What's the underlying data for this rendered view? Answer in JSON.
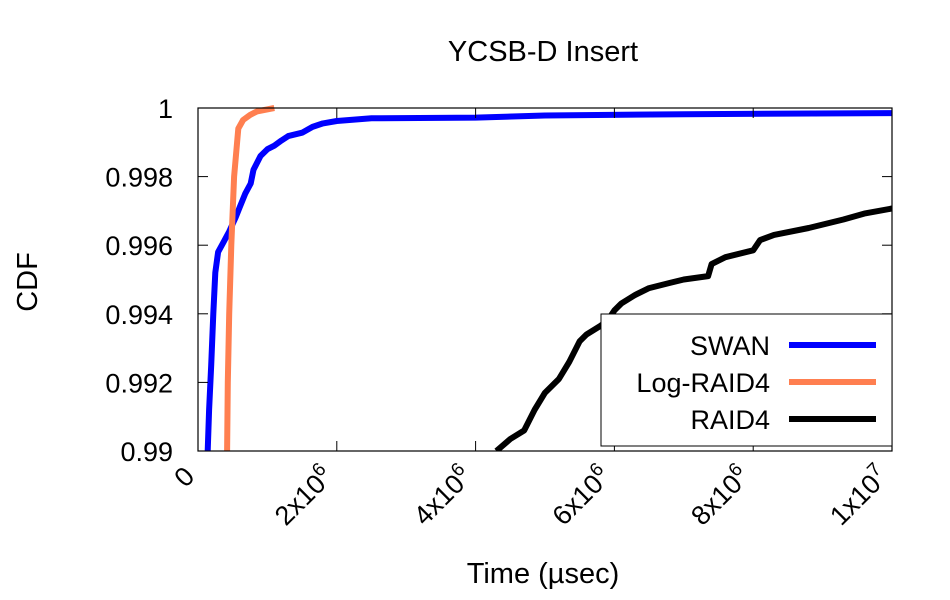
{
  "chart_data": {
    "type": "line",
    "title": "YCSB-D Insert",
    "xlabel": "Time (µsec)",
    "ylabel": "CDF",
    "xlim": [
      0,
      10000000
    ],
    "ylim": [
      0.99,
      1.0
    ],
    "grid": false,
    "legend_position": "bottom-right",
    "x_ticks": [
      {
        "value": 0,
        "base": "0",
        "exp": ""
      },
      {
        "value": 2000000,
        "base": "2x10",
        "exp": "6"
      },
      {
        "value": 4000000,
        "base": "4x10",
        "exp": "6"
      },
      {
        "value": 6000000,
        "base": "6x10",
        "exp": "6"
      },
      {
        "value": 8000000,
        "base": "8x10",
        "exp": "6"
      },
      {
        "value": 10000000,
        "base": "1x10",
        "exp": "7"
      }
    ],
    "y_ticks": [
      {
        "value": 0.99,
        "label": "0.99"
      },
      {
        "value": 0.992,
        "label": "0.992"
      },
      {
        "value": 0.994,
        "label": "0.994"
      },
      {
        "value": 0.996,
        "label": "0.996"
      },
      {
        "value": 0.998,
        "label": "0.998"
      },
      {
        "value": 1.0,
        "label": "1"
      }
    ],
    "series": [
      {
        "name": "SWAN",
        "color": "#0000ff",
        "points": [
          [
            140000,
            0.99
          ],
          [
            160000,
            0.9912
          ],
          [
            190000,
            0.9925
          ],
          [
            220000,
            0.994
          ],
          [
            250000,
            0.9952
          ],
          [
            290000,
            0.9958
          ],
          [
            370000,
            0.9961
          ],
          [
            450000,
            0.9964
          ],
          [
            540000,
            0.9968
          ],
          [
            600000,
            0.9971
          ],
          [
            680000,
            0.9975
          ],
          [
            760000,
            0.9978
          ],
          [
            800000,
            0.9982
          ],
          [
            850000,
            0.9984
          ],
          [
            900000,
            0.9986
          ],
          [
            1000000,
            0.9988
          ],
          [
            1100000,
            0.9989
          ],
          [
            1200000,
            0.99905
          ],
          [
            1300000,
            0.99918
          ],
          [
            1500000,
            0.99928
          ],
          [
            1650000,
            0.99945
          ],
          [
            1800000,
            0.99955
          ],
          [
            2000000,
            0.99962
          ],
          [
            2500000,
            0.9997
          ],
          [
            4000000,
            0.99972
          ],
          [
            5000000,
            0.99978
          ],
          [
            7000000,
            0.99982
          ],
          [
            10000000,
            0.99985
          ]
        ]
      },
      {
        "name": "Log-RAID4",
        "color": "#ff7f50",
        "points": [
          [
            420000,
            0.99
          ],
          [
            430000,
            0.992
          ],
          [
            450000,
            0.994
          ],
          [
            480000,
            0.996
          ],
          [
            520000,
            0.998
          ],
          [
            580000,
            0.9994
          ],
          [
            650000,
            0.99965
          ],
          [
            750000,
            0.9998
          ],
          [
            850000,
            0.9999
          ],
          [
            1100000,
            1.0
          ]
        ]
      },
      {
        "name": "RAID4",
        "color": "#000000",
        "points": [
          [
            4300000,
            0.99
          ],
          [
            4500000,
            0.99035
          ],
          [
            4700000,
            0.9906
          ],
          [
            4850000,
            0.9912
          ],
          [
            5000000,
            0.9917
          ],
          [
            5200000,
            0.9921
          ],
          [
            5350000,
            0.9926
          ],
          [
            5500000,
            0.9932
          ],
          [
            5600000,
            0.9934
          ],
          [
            5800000,
            0.99365
          ],
          [
            5900000,
            0.9938
          ],
          [
            6000000,
            0.9941
          ],
          [
            6100000,
            0.9943
          ],
          [
            6300000,
            0.99455
          ],
          [
            6500000,
            0.99475
          ],
          [
            6800000,
            0.9949
          ],
          [
            7000000,
            0.995
          ],
          [
            7350000,
            0.9951
          ],
          [
            7400000,
            0.99545
          ],
          [
            7600000,
            0.99565
          ],
          [
            8000000,
            0.99585
          ],
          [
            8100000,
            0.99615
          ],
          [
            8300000,
            0.9963
          ],
          [
            8800000,
            0.9965
          ],
          [
            9300000,
            0.99675
          ],
          [
            9600000,
            0.99692
          ],
          [
            10000000,
            0.99707
          ]
        ]
      }
    ]
  }
}
